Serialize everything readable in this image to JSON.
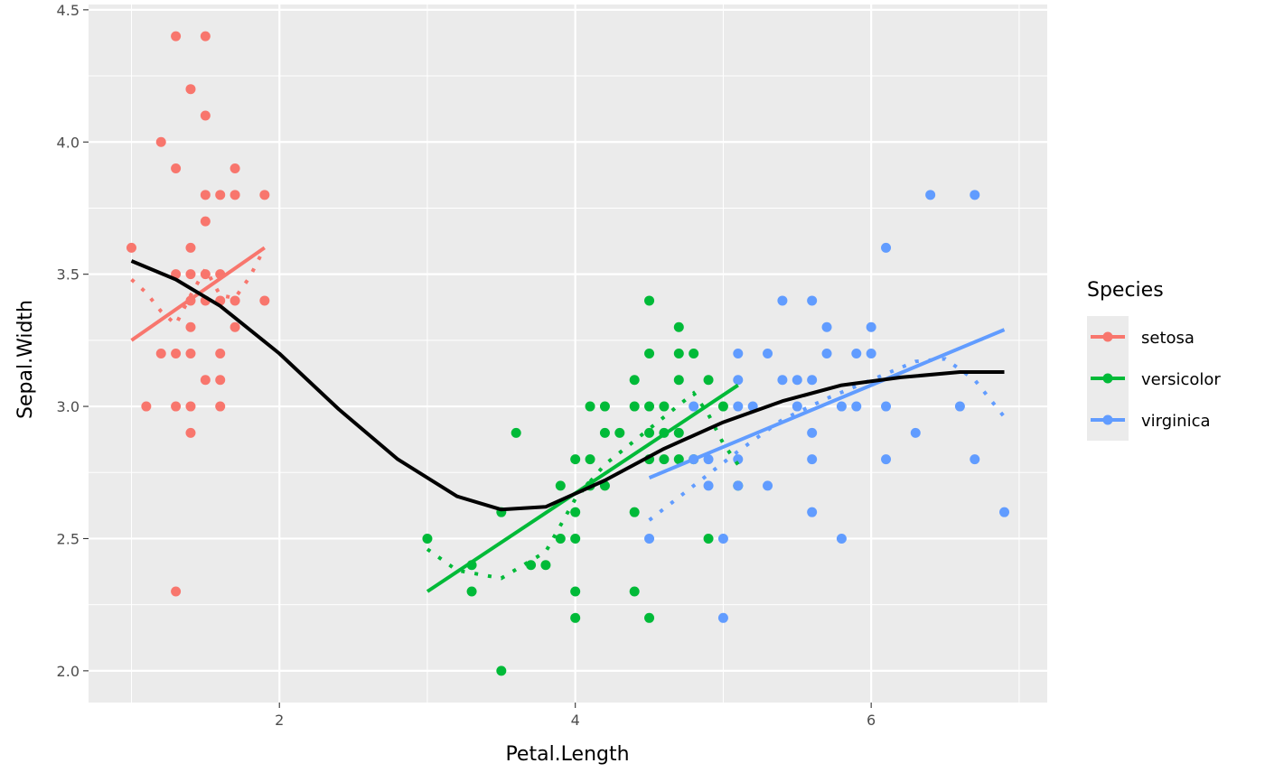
{
  "chart_data": {
    "type": "scatter",
    "xlabel": "Petal.Length",
    "ylabel": "Sepal.Width",
    "xlim": [
      0.71,
      7.19
    ],
    "ylim": [
      1.88,
      4.52
    ],
    "x_ticks": [
      2,
      4,
      6
    ],
    "x_tick_labels": [
      "2",
      "4",
      "6"
    ],
    "x_minor_ticks": [
      1,
      3,
      5,
      7
    ],
    "y_ticks": [
      2.0,
      2.5,
      3.0,
      3.5,
      4.0,
      4.5
    ],
    "y_tick_labels": [
      "2.0",
      "2.5",
      "3.0",
      "3.5",
      "4.0",
      "4.5"
    ],
    "y_minor_ticks": [
      2.25,
      2.75,
      3.25,
      3.75,
      4.25
    ],
    "grid": true,
    "panel_background": "#ebebeb",
    "legend": {
      "title": "Species",
      "position": "right",
      "items": [
        {
          "label": "setosa",
          "color": "#f8766d"
        },
        {
          "label": "versicolor",
          "color": "#00ba38"
        },
        {
          "label": "virginica",
          "color": "#619cff"
        }
      ]
    },
    "series": [
      {
        "name": "setosa",
        "color": "#f8766d",
        "points": [
          [
            1.0,
            3.6
          ],
          [
            1.1,
            3.0
          ],
          [
            1.2,
            4.0
          ],
          [
            1.2,
            3.2
          ],
          [
            1.3,
            4.4
          ],
          [
            1.3,
            3.9
          ],
          [
            1.3,
            3.5
          ],
          [
            1.3,
            3.2
          ],
          [
            1.3,
            3.0
          ],
          [
            1.3,
            2.3
          ],
          [
            1.4,
            4.2
          ],
          [
            1.4,
            3.6
          ],
          [
            1.4,
            3.5
          ],
          [
            1.4,
            3.4
          ],
          [
            1.4,
            3.3
          ],
          [
            1.4,
            3.2
          ],
          [
            1.4,
            3.0
          ],
          [
            1.4,
            2.9
          ],
          [
            1.5,
            4.4
          ],
          [
            1.5,
            4.1
          ],
          [
            1.5,
            3.8
          ],
          [
            1.5,
            3.7
          ],
          [
            1.5,
            3.5
          ],
          [
            1.5,
            3.4
          ],
          [
            1.5,
            3.1
          ],
          [
            1.6,
            3.8
          ],
          [
            1.6,
            3.5
          ],
          [
            1.6,
            3.4
          ],
          [
            1.6,
            3.2
          ],
          [
            1.6,
            3.1
          ],
          [
            1.6,
            3.0
          ],
          [
            1.7,
            3.9
          ],
          [
            1.7,
            3.8
          ],
          [
            1.7,
            3.4
          ],
          [
            1.7,
            3.3
          ],
          [
            1.9,
            3.8
          ],
          [
            1.9,
            3.4
          ]
        ],
        "lm": [
          [
            1.0,
            3.25
          ],
          [
            1.9,
            3.6
          ]
        ],
        "loess": [
          [
            1.0,
            3.48
          ],
          [
            1.1,
            3.43
          ],
          [
            1.2,
            3.36
          ],
          [
            1.3,
            3.31
          ],
          [
            1.4,
            3.42
          ],
          [
            1.5,
            3.52
          ],
          [
            1.6,
            3.42
          ],
          [
            1.7,
            3.41
          ],
          [
            1.8,
            3.49
          ],
          [
            1.9,
            3.6
          ]
        ]
      },
      {
        "name": "versicolor",
        "color": "#00ba38",
        "points": [
          [
            3.0,
            2.5
          ],
          [
            3.3,
            2.4
          ],
          [
            3.3,
            2.3
          ],
          [
            3.5,
            2.6
          ],
          [
            3.5,
            2.0
          ],
          [
            3.6,
            2.9
          ],
          [
            3.7,
            2.4
          ],
          [
            3.8,
            2.4
          ],
          [
            3.9,
            2.7
          ],
          [
            3.9,
            2.5
          ],
          [
            4.0,
            2.8
          ],
          [
            4.0,
            2.6
          ],
          [
            4.0,
            2.5
          ],
          [
            4.0,
            2.3
          ],
          [
            4.0,
            2.2
          ],
          [
            4.1,
            3.0
          ],
          [
            4.1,
            2.8
          ],
          [
            4.1,
            2.7
          ],
          [
            4.2,
            3.0
          ],
          [
            4.2,
            2.9
          ],
          [
            4.2,
            2.7
          ],
          [
            4.3,
            2.9
          ],
          [
            4.4,
            3.1
          ],
          [
            4.4,
            3.0
          ],
          [
            4.4,
            2.6
          ],
          [
            4.4,
            2.3
          ],
          [
            4.5,
            3.4
          ],
          [
            4.5,
            3.2
          ],
          [
            4.5,
            3.0
          ],
          [
            4.5,
            2.9
          ],
          [
            4.5,
            2.8
          ],
          [
            4.5,
            2.2
          ],
          [
            4.6,
            3.0
          ],
          [
            4.6,
            2.9
          ],
          [
            4.6,
            2.8
          ],
          [
            4.7,
            3.3
          ],
          [
            4.7,
            3.2
          ],
          [
            4.7,
            3.1
          ],
          [
            4.7,
            2.9
          ],
          [
            4.7,
            2.8
          ],
          [
            4.8,
            3.2
          ],
          [
            4.8,
            2.8
          ],
          [
            4.9,
            3.1
          ],
          [
            4.9,
            2.5
          ],
          [
            5.0,
            3.0
          ],
          [
            5.1,
            2.7
          ]
        ],
        "lm": [
          [
            3.0,
            2.3
          ],
          [
            5.1,
            3.08
          ]
        ],
        "loess": [
          [
            3.0,
            2.46
          ],
          [
            3.2,
            2.38
          ],
          [
            3.5,
            2.35
          ],
          [
            3.8,
            2.45
          ],
          [
            4.0,
            2.65
          ],
          [
            4.2,
            2.78
          ],
          [
            4.4,
            2.87
          ],
          [
            4.6,
            2.96
          ],
          [
            4.8,
            3.05
          ],
          [
            4.9,
            2.97
          ],
          [
            5.0,
            2.86
          ],
          [
            5.1,
            2.78
          ]
        ]
      },
      {
        "name": "virginica",
        "color": "#619cff",
        "points": [
          [
            4.5,
            2.5
          ],
          [
            4.8,
            3.0
          ],
          [
            4.8,
            2.8
          ],
          [
            4.9,
            2.8
          ],
          [
            4.9,
            2.7
          ],
          [
            5.0,
            2.5
          ],
          [
            5.0,
            2.2
          ],
          [
            5.1,
            3.2
          ],
          [
            5.1,
            3.1
          ],
          [
            5.1,
            3.0
          ],
          [
            5.1,
            2.8
          ],
          [
            5.1,
            2.7
          ],
          [
            5.2,
            3.0
          ],
          [
            5.3,
            3.2
          ],
          [
            5.3,
            2.7
          ],
          [
            5.4,
            3.4
          ],
          [
            5.4,
            3.1
          ],
          [
            5.5,
            3.1
          ],
          [
            5.5,
            3.0
          ],
          [
            5.6,
            3.4
          ],
          [
            5.6,
            3.1
          ],
          [
            5.6,
            2.9
          ],
          [
            5.6,
            2.8
          ],
          [
            5.6,
            2.6
          ],
          [
            5.7,
            3.3
          ],
          [
            5.7,
            3.2
          ],
          [
            5.8,
            3.0
          ],
          [
            5.8,
            2.5
          ],
          [
            5.9,
            3.2
          ],
          [
            5.9,
            3.0
          ],
          [
            6.0,
            3.3
          ],
          [
            6.0,
            3.2
          ],
          [
            6.1,
            3.6
          ],
          [
            6.1,
            3.0
          ],
          [
            6.1,
            2.8
          ],
          [
            6.3,
            2.9
          ],
          [
            6.4,
            3.8
          ],
          [
            6.6,
            3.0
          ],
          [
            6.7,
            3.8
          ],
          [
            6.7,
            2.8
          ],
          [
            6.9,
            2.6
          ]
        ],
        "lm": [
          [
            4.5,
            2.73
          ],
          [
            6.9,
            3.29
          ]
        ],
        "loess": [
          [
            4.5,
            2.57
          ],
          [
            4.8,
            2.7
          ],
          [
            5.1,
            2.83
          ],
          [
            5.4,
            2.95
          ],
          [
            5.7,
            3.03
          ],
          [
            6.0,
            3.1
          ],
          [
            6.3,
            3.17
          ],
          [
            6.5,
            3.18
          ],
          [
            6.7,
            3.1
          ],
          [
            6.9,
            2.96
          ]
        ]
      }
    ],
    "overall_smooth": {
      "color": "#000000",
      "points": [
        [
          1.0,
          3.55
        ],
        [
          1.3,
          3.48
        ],
        [
          1.6,
          3.38
        ],
        [
          2.0,
          3.2
        ],
        [
          2.4,
          2.99
        ],
        [
          2.8,
          2.8
        ],
        [
          3.2,
          2.66
        ],
        [
          3.5,
          2.61
        ],
        [
          3.8,
          2.62
        ],
        [
          4.2,
          2.72
        ],
        [
          4.6,
          2.84
        ],
        [
          5.0,
          2.94
        ],
        [
          5.4,
          3.02
        ],
        [
          5.8,
          3.08
        ],
        [
          6.2,
          3.11
        ],
        [
          6.6,
          3.13
        ],
        [
          6.9,
          3.13
        ]
      ]
    }
  }
}
